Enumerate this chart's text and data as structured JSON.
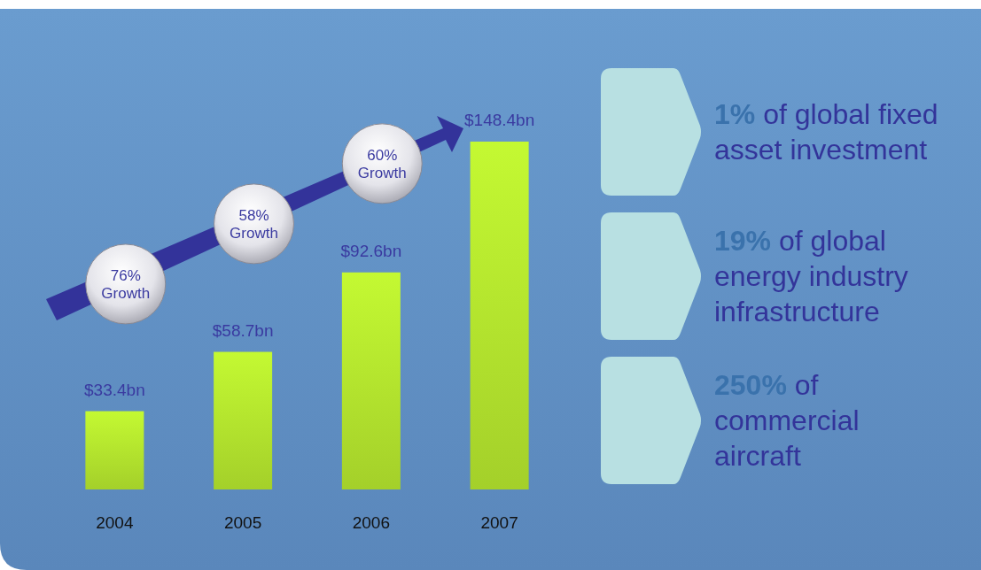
{
  "chart_data": {
    "type": "bar",
    "categories": [
      "2004",
      "2005",
      "2006",
      "2007"
    ],
    "values": [
      33.4,
      58.7,
      92.6,
      148.4
    ],
    "value_labels": [
      "$33.4bn",
      "$58.7bn",
      "$92.6bn",
      "$148.4bn"
    ],
    "color": "#a4d02a",
    "annotations": [
      "76%\nGrowth",
      "58%\nGrowth",
      "60%\nGrowth",
      "1% of global fixed\nasset investment",
      "19% of global\nenergy industry\ninfrastructure",
      "250% of\ncommercial\naircraft"
    ]
  }
}
